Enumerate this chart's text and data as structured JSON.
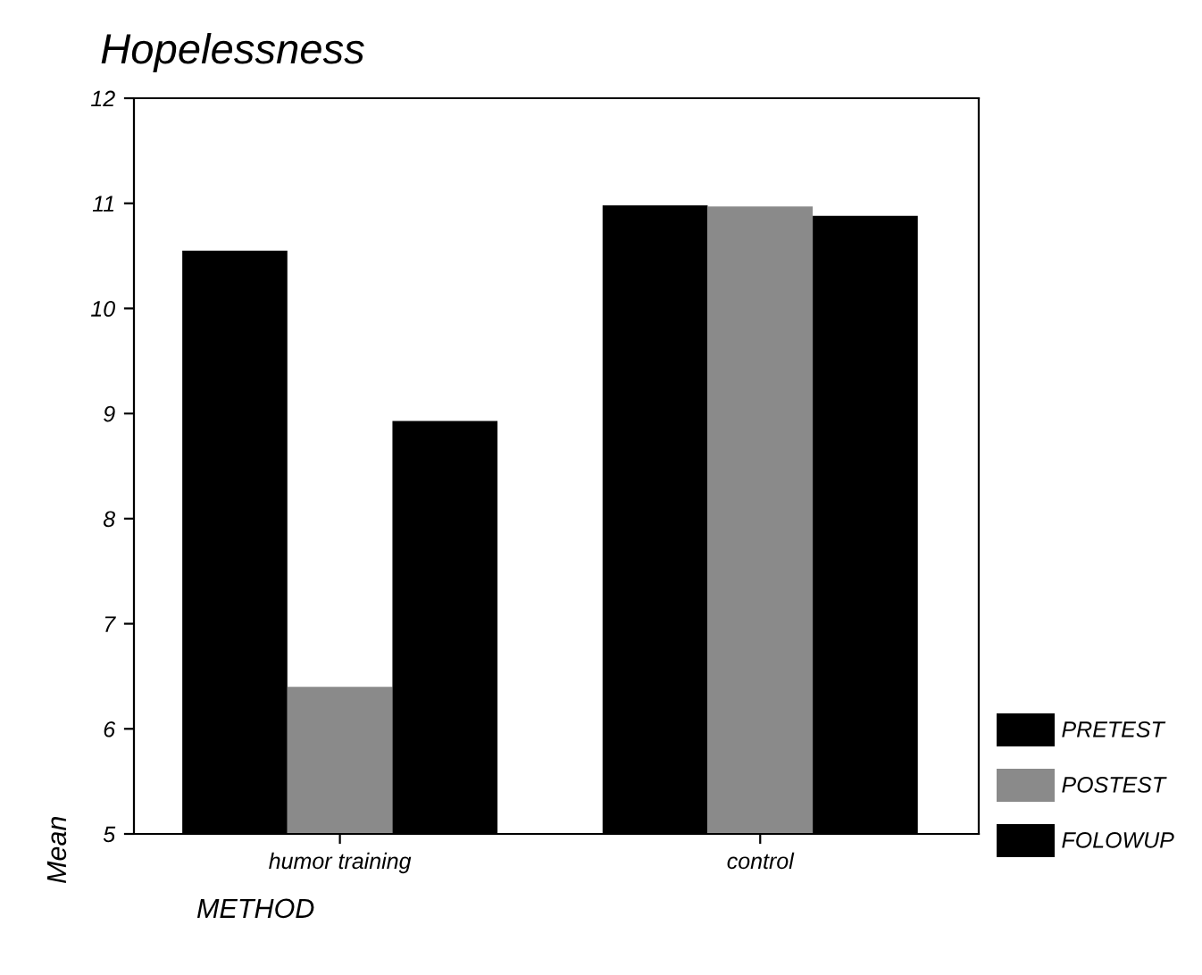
{
  "chart_data": {
    "type": "bar",
    "title": "Hopelessness",
    "xlabel": "METHOD",
    "ylabel": "Mean",
    "categories": [
      "humor training",
      "control"
    ],
    "series": [
      {
        "name": "PRETEST",
        "color": "#000000",
        "values": [
          10.55,
          10.98
        ]
      },
      {
        "name": "POSTEST",
        "color": "#8a8a8a",
        "values": [
          6.4,
          10.97
        ]
      },
      {
        "name": "FOLOWUP",
        "color": "#000000",
        "values": [
          8.93,
          10.88
        ]
      }
    ],
    "ylim": [
      5,
      12
    ],
    "yticks": [
      5,
      6,
      7,
      8,
      9,
      10,
      11,
      12
    ],
    "grid": false,
    "legend": "bottom right"
  }
}
